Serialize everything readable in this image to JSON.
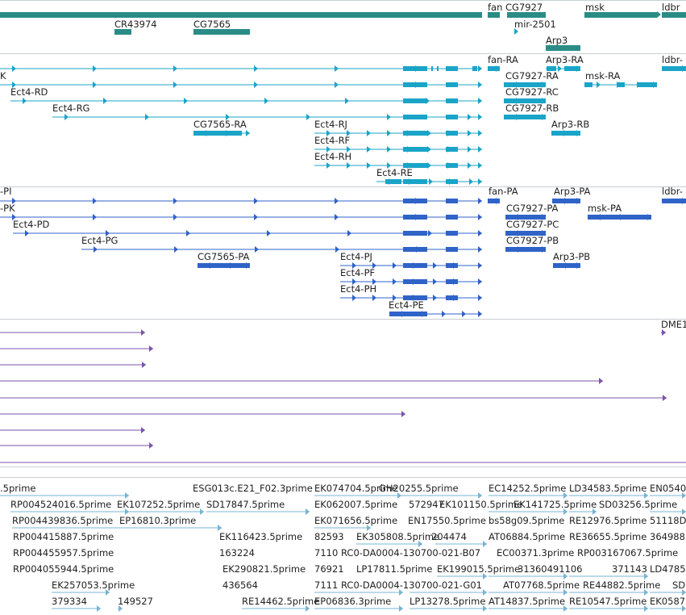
{
  "colors": {
    "gene": "#2b8c86",
    "transcript": "#1aa4c8",
    "protein": "#2f63c8",
    "alignment": "#7b53ad",
    "est": "#78b4d4",
    "separator": "#c8ced2"
  },
  "tracks": [
    {
      "id": "genes",
      "items": [
        {
          "label": ""
        },
        {
          "label": "fan"
        },
        {
          "label": "CG7927"
        },
        {
          "label": "msk"
        },
        {
          "label": "ldbr"
        },
        {
          "label": "CR43974"
        },
        {
          "label": "CG7565"
        },
        {
          "label": "mir-2501"
        },
        {
          "label": "Arp3"
        }
      ]
    },
    {
      "id": "transcripts",
      "items": [
        {
          "label": "K"
        },
        {
          "label": "fan-RA"
        },
        {
          "label": "Arp3-RA"
        },
        {
          "label": "ldbr-"
        },
        {
          "label": "CG7927-RA"
        },
        {
          "label": "msk-RA"
        },
        {
          "label": "Ect4-RD"
        },
        {
          "label": "CG7927-RC"
        },
        {
          "label": "Ect4-RG"
        },
        {
          "label": "CG7927-RB"
        },
        {
          "label": "CG7565-RA"
        },
        {
          "label": "Ect4-RJ"
        },
        {
          "label": "Arp3-RB"
        },
        {
          "label": "Ect4-RF"
        },
        {
          "label": "Ect4-RH"
        },
        {
          "label": "Ect4-RE"
        }
      ]
    },
    {
      "id": "proteins",
      "items": [
        {
          "label": "-PI"
        },
        {
          "label": "fan-PA"
        },
        {
          "label": "Arp3-PA"
        },
        {
          "label": "ldbr-"
        },
        {
          "label": "-PK"
        },
        {
          "label": "CG7927-PA"
        },
        {
          "label": "msk-PA"
        },
        {
          "label": "Ect4-PD"
        },
        {
          "label": "CG7927-PC"
        },
        {
          "label": "Ect4-PG"
        },
        {
          "label": "CG7927-PB"
        },
        {
          "label": "CG7565-PA"
        },
        {
          "label": "Ect4-PJ"
        },
        {
          "label": "Arp3-PB"
        },
        {
          "label": "Ect4-PF"
        },
        {
          "label": "Ect4-PH"
        },
        {
          "label": "Ect4-PE"
        }
      ]
    },
    {
      "id": "alignments",
      "items": [
        {
          "label": "DME1"
        },
        {
          "label": ""
        },
        {
          "label": ""
        },
        {
          "label": ""
        },
        {
          "label": ""
        },
        {
          "label": ""
        },
        {
          "label": ""
        },
        {
          "label": ""
        },
        {
          "label": ""
        },
        {
          "label": ""
        }
      ]
    },
    {
      "id": "ests",
      "items": [
        {
          "label": ".5prime"
        },
        {
          "label": "ESG013c.E21_F02.3prime"
        },
        {
          "label": "EK074704.5prime"
        },
        {
          "label": "GH20255.5prime"
        },
        {
          "label": "EC14252.5prime"
        },
        {
          "label": "LD34583.5prime"
        },
        {
          "label": "EN0540"
        },
        {
          "label": "RP004524016.5prime"
        },
        {
          "label": "EK107252.5prime"
        },
        {
          "label": "SD17847.5prime"
        },
        {
          "label": "EK062007.5prime"
        },
        {
          "label": "572947"
        },
        {
          "label": "EK101150.5prime"
        },
        {
          "label": "EK141725.5prime"
        },
        {
          "label": "SD03256.5prime"
        },
        {
          "label": "RP004439836.5prime"
        },
        {
          "label": "EP16810.3prime"
        },
        {
          "label": "EK071656.5prime"
        },
        {
          "label": "EN17550.5prime"
        },
        {
          "label": "bs58g09.5prime"
        },
        {
          "label": "RE12976.5prime"
        },
        {
          "label": "51118D"
        },
        {
          "label": "RP004415887.5prime"
        },
        {
          "label": "EK116423.5prime"
        },
        {
          "label": "82593"
        },
        {
          "label": "EK305808.5prime"
        },
        {
          "label": "204474"
        },
        {
          "label": "AT06884.5prime"
        },
        {
          "label": "RE36655.5prime"
        },
        {
          "label": "364988"
        },
        {
          "label": "RP004455957.5prime"
        },
        {
          "label": "163224"
        },
        {
          "label": "7110"
        },
        {
          "label": "RC0-DA0004-130700-021-B07"
        },
        {
          "label": "EC00371.3prime"
        },
        {
          "label": "RP003167067.5prime"
        },
        {
          "label": "RP004055944.5prime"
        },
        {
          "label": "EK290821.5prime"
        },
        {
          "label": "76921"
        },
        {
          "label": "LP17811.5prime"
        },
        {
          "label": "EK199015.5prime"
        },
        {
          "label": "31360491106"
        },
        {
          "label": "371143"
        },
        {
          "label": "LD47850"
        },
        {
          "label": "EK257053.5prime"
        },
        {
          "label": "436564"
        },
        {
          "label": "7111"
        },
        {
          "label": "RC0-DA0004-130700-021-G01"
        },
        {
          "label": "AT07768.5prime"
        },
        {
          "label": "RE44882.5prime"
        },
        {
          "label": "SD"
        },
        {
          "label": "379334"
        },
        {
          "label": "149527"
        },
        {
          "label": "RE14462.5prime"
        },
        {
          "label": "EP06836.3prime"
        },
        {
          "label": "LP13278.5prime"
        },
        {
          "label": "AT14837.5prime"
        },
        {
          "label": "RE10547.5prime"
        },
        {
          "label": "EK0587"
        }
      ]
    }
  ]
}
